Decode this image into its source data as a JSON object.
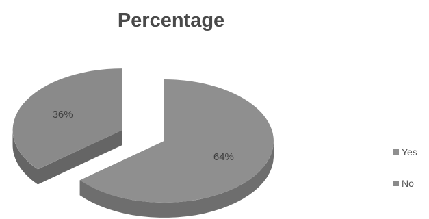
{
  "chart_data": {
    "type": "pie",
    "title": "Percentage",
    "style": "3d-exploded",
    "categories": [
      "Yes",
      "No"
    ],
    "values": [
      64,
      36
    ],
    "labels": [
      "64%",
      "36%"
    ],
    "legend_position": "right",
    "colors": {
      "Yes": {
        "top": "#8f8f8f",
        "side": "#6e6e6e"
      },
      "No": {
        "top": "#8a8a8a",
        "side": "#656565"
      }
    }
  }
}
